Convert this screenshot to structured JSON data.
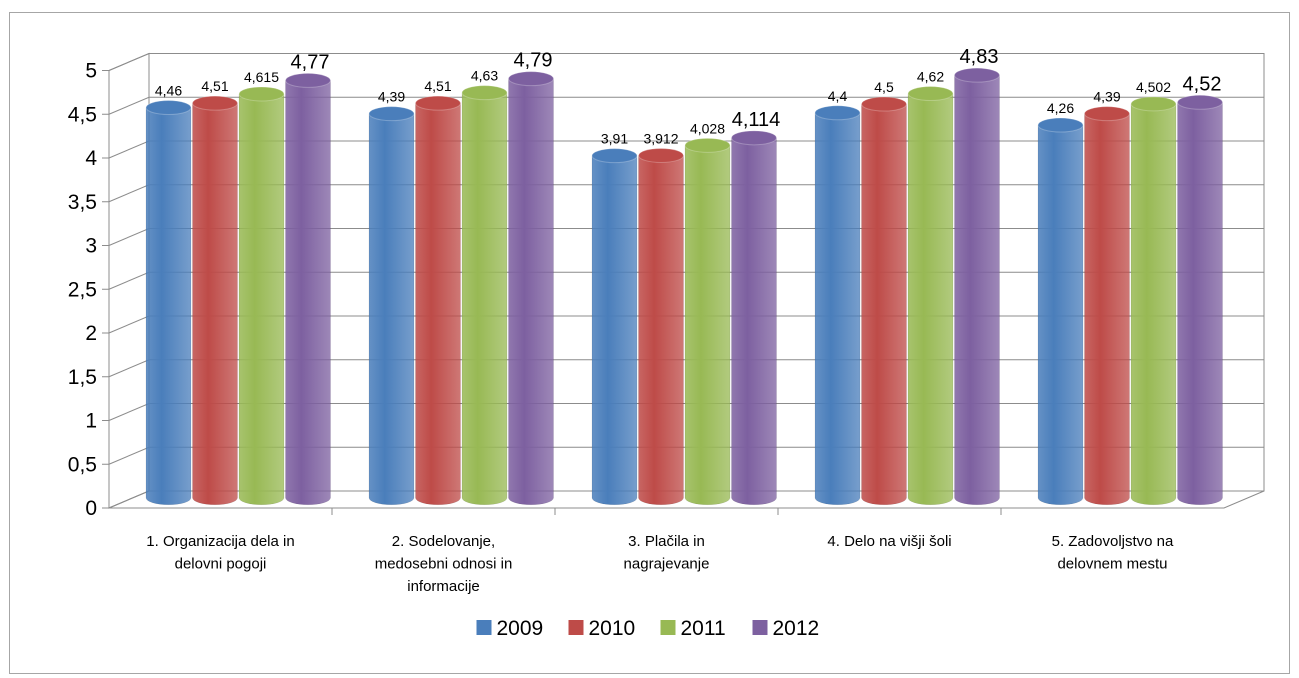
{
  "chart_data": {
    "type": "bar",
    "title": "",
    "xlabel": "",
    "ylabel": "",
    "ylim": [
      0,
      5
    ],
    "yticks": [
      "0",
      "0,5",
      "1",
      "1,5",
      "2",
      "2,5",
      "3",
      "3,5",
      "4",
      "4,5",
      "5"
    ],
    "grid": true,
    "legend_position": "bottom",
    "categories": [
      [
        "1. Organizacija dela in",
        "delovni pogoji"
      ],
      [
        "2. Sodelovanje,",
        "medosebni odnosi in",
        "informacije"
      ],
      [
        "3. Plačila in",
        "nagrajevanje"
      ],
      [
        "4. Delo na višji šoli"
      ],
      [
        "5. Zadovoljstvo na",
        "delovnem mestu"
      ]
    ],
    "series": [
      {
        "name": "2009",
        "color": "#4a7ebb",
        "values": [
          4.46,
          4.39,
          3.91,
          4.4,
          4.26
        ],
        "labels": [
          "4,46",
          "4,39",
          "3,91",
          "4,4",
          "4,26"
        ]
      },
      {
        "name": "2010",
        "color": "#be4b48",
        "values": [
          4.51,
          4.51,
          3.912,
          4.5,
          4.39
        ],
        "labels": [
          "4,51",
          "4,51",
          "3,912",
          "4,5",
          "4,39"
        ]
      },
      {
        "name": "2011",
        "color": "#98b954",
        "values": [
          4.615,
          4.63,
          4.028,
          4.62,
          4.502
        ],
        "labels": [
          "4,615",
          "4,63",
          "4,028",
          "4,62",
          "4,502"
        ]
      },
      {
        "name": "2012",
        "color": "#7d60a0",
        "values": [
          4.77,
          4.79,
          4.114,
          4.83,
          4.52
        ],
        "labels": [
          "4,77",
          "4,79",
          "4,114",
          "4,83",
          "4,52"
        ]
      }
    ]
  }
}
